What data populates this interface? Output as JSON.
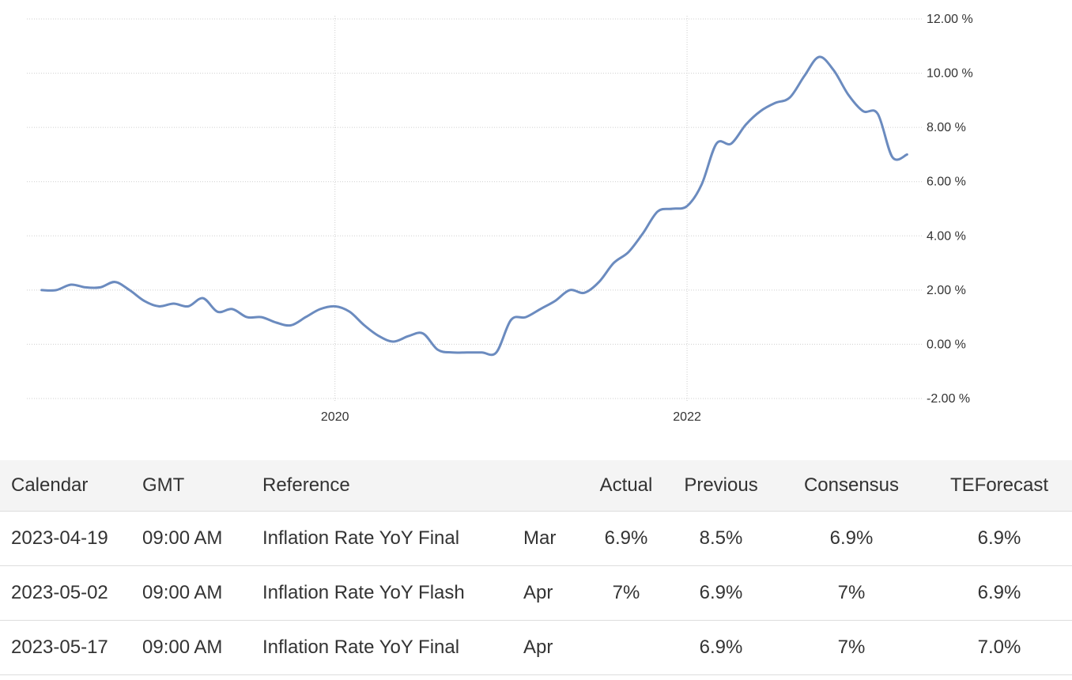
{
  "chart_data": {
    "type": "line",
    "series": [
      {
        "color": "#6b8bbf",
        "x": [
          "2018-05",
          "2018-06",
          "2018-07",
          "2018-08",
          "2018-09",
          "2018-10",
          "2018-11",
          "2018-12",
          "2019-01",
          "2019-02",
          "2019-03",
          "2019-04",
          "2019-05",
          "2019-06",
          "2019-07",
          "2019-08",
          "2019-09",
          "2019-10",
          "2019-11",
          "2019-12",
          "2020-01",
          "2020-02",
          "2020-03",
          "2020-04",
          "2020-05",
          "2020-06",
          "2020-07",
          "2020-08",
          "2020-09",
          "2020-10",
          "2020-11",
          "2020-12",
          "2021-01",
          "2021-02",
          "2021-03",
          "2021-04",
          "2021-05",
          "2021-06",
          "2021-07",
          "2021-08",
          "2021-09",
          "2021-10",
          "2021-11",
          "2021-12",
          "2022-01",
          "2022-02",
          "2022-03",
          "2022-04",
          "2022-05",
          "2022-06",
          "2022-07",
          "2022-08",
          "2022-09",
          "2022-10",
          "2022-11",
          "2022-12",
          "2023-01",
          "2023-02",
          "2023-03",
          "2023-04"
        ],
        "values": [
          2.0,
          2.0,
          2.2,
          2.1,
          2.1,
          2.3,
          2.0,
          1.6,
          1.4,
          1.5,
          1.4,
          1.7,
          1.2,
          1.3,
          1.0,
          1.0,
          0.8,
          0.7,
          1.0,
          1.3,
          1.4,
          1.2,
          0.7,
          0.3,
          0.1,
          0.3,
          0.4,
          -0.2,
          -0.3,
          -0.3,
          -0.3,
          -0.3,
          0.9,
          1.0,
          1.3,
          1.6,
          2.0,
          1.9,
          2.3,
          3.0,
          3.4,
          4.1,
          4.9,
          5.0,
          5.1,
          5.9,
          7.4,
          7.4,
          8.1,
          8.6,
          8.9,
          9.1,
          9.9,
          10.6,
          10.1,
          9.2,
          8.6,
          8.5,
          6.9,
          7.0
        ]
      }
    ],
    "xticks": [
      "2020",
      "2022"
    ],
    "xtick_values": [
      "2020-01",
      "2022-01"
    ],
    "yticks": [
      "12.00 %",
      "10.00 %",
      "8.00 %",
      "6.00 %",
      "4.00 %",
      "2.00 %",
      "0.00 %",
      "-2.00 %"
    ],
    "ylim": [
      -2,
      12
    ],
    "xlim": [
      "2018-04",
      "2023-05"
    ],
    "grid": true
  },
  "table": {
    "headers": {
      "calendar": "Calendar",
      "gmt": "GMT",
      "reference": "Reference",
      "period": "",
      "actual": "Actual",
      "previous": "Previous",
      "consensus": "Consensus",
      "teforecast": "TEForecast"
    },
    "rows": [
      {
        "calendar": "2023-04-19",
        "gmt": "09:00 AM",
        "reference": "Inflation Rate YoY Final",
        "period": "Mar",
        "actual": "6.9%",
        "previous": "8.5%",
        "consensus": "6.9%",
        "teforecast": "6.9%"
      },
      {
        "calendar": "2023-05-02",
        "gmt": "09:00 AM",
        "reference": "Inflation Rate YoY Flash",
        "period": "Apr",
        "actual": "7%",
        "previous": "6.9%",
        "consensus": "7%",
        "teforecast": "6.9%"
      },
      {
        "calendar": "2023-05-17",
        "gmt": "09:00 AM",
        "reference": "Inflation Rate YoY Final",
        "period": "Apr",
        "actual": "",
        "previous": "6.9%",
        "consensus": "7%",
        "teforecast": "7.0%"
      }
    ]
  }
}
